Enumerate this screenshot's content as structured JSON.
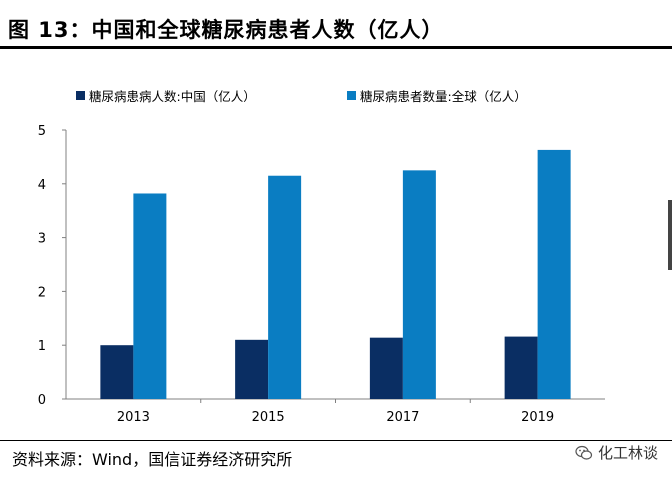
{
  "figure": {
    "title": "图 13：中国和全球糖尿病患者人数（亿人）"
  },
  "footer": {
    "source": "资料来源：Wind，国信证券经济研究所",
    "watermark": "化工林谈"
  },
  "icons": {
    "watermark_icon": "wechat-icon"
  },
  "chart_data": {
    "type": "bar",
    "title": "",
    "xlabel": "",
    "ylabel": "",
    "categories": [
      "2013",
      "2015",
      "2017",
      "2019"
    ],
    "series": [
      {
        "name": "糖尿病患病人数:中国（亿人）",
        "values": [
          1.0,
          1.1,
          1.14,
          1.16
        ],
        "color": "#0a2e63"
      },
      {
        "name": "糖尿病患者数量:全球（亿人）",
        "values": [
          3.82,
          4.15,
          4.25,
          4.63
        ],
        "color": "#0a7dc2"
      }
    ],
    "ylim": [
      0,
      5
    ],
    "yticks": [
      "0",
      "1",
      "2",
      "3",
      "4",
      "5"
    ],
    "grid": false,
    "legend_position": "top"
  }
}
